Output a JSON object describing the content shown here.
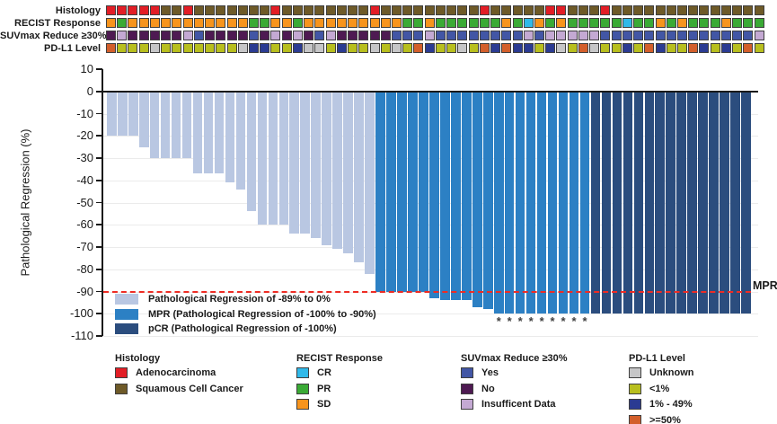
{
  "figure": {
    "type": "waterfall-plot-with-annotation-tracks",
    "background": "#ffffff"
  },
  "annotation_tracks": {
    "labels": [
      "Histology",
      "RECIST Response",
      "SUVmax Reduce ≥30%",
      "PD-L1 Level"
    ],
    "palette": {
      "R": "#e21e26",
      "B": "#6e5a28",
      "O": "#f7941d",
      "G": "#3aaa35",
      "C": "#30b9e9",
      "U": "#4256a5",
      "D": "#4e1a52",
      "L": "#c4a9d3",
      "G2": "#c6c6c7",
      "Y": "#b8bf1e",
      "U2": "#2b3b92",
      "O2": "#d35f2b"
    },
    "rows": [
      [
        "R",
        "R",
        "R",
        "R",
        "R",
        "B",
        "B",
        "R",
        "B",
        "B",
        "B",
        "B",
        "B",
        "B",
        "B",
        "R",
        "B",
        "B",
        "B",
        "B",
        "B",
        "B",
        "B",
        "B",
        "R",
        "B",
        "B",
        "B",
        "B",
        "B",
        "B",
        "B",
        "B",
        "B",
        "R",
        "B",
        "B",
        "B",
        "B",
        "B",
        "R",
        "R",
        "B",
        "B",
        "B",
        "R",
        "B",
        "B",
        "B",
        "B",
        "B",
        "B",
        "B",
        "B",
        "B",
        "B",
        "B",
        "B",
        "B",
        "B"
      ],
      [
        "O",
        "G",
        "O",
        "O",
        "O",
        "O",
        "O",
        "O",
        "O",
        "O",
        "O",
        "O",
        "O",
        "G",
        "G",
        "O",
        "O",
        "G",
        "O",
        "O",
        "O",
        "O",
        "O",
        "O",
        "O",
        "O",
        "O",
        "G",
        "G",
        "O",
        "G",
        "G",
        "G",
        "G",
        "G",
        "G",
        "O",
        "G",
        "C",
        "O",
        "G",
        "O",
        "G",
        "G",
        "G",
        "G",
        "G",
        "C",
        "G",
        "G",
        "O",
        "G",
        "O",
        "G",
        "G",
        "G",
        "O",
        "G",
        "G",
        "G"
      ],
      [
        "D",
        "L",
        "D",
        "D",
        "D",
        "D",
        "D",
        "L",
        "U",
        "D",
        "D",
        "D",
        "D",
        "U",
        "D",
        "L",
        "D",
        "L",
        "D",
        "U",
        "L",
        "D",
        "D",
        "D",
        "D",
        "D",
        "U",
        "U",
        "U",
        "L",
        "U",
        "U",
        "U",
        "U",
        "U",
        "U",
        "U",
        "U",
        "L",
        "U",
        "L",
        "L",
        "L",
        "L",
        "L",
        "U",
        "U",
        "U",
        "U",
        "U",
        "U",
        "U",
        "U",
        "U",
        "U",
        "U",
        "U",
        "U",
        "U",
        "L"
      ],
      [
        "O2",
        "Y",
        "Y",
        "Y",
        "G2",
        "Y",
        "Y",
        "Y",
        "Y",
        "Y",
        "Y",
        "Y",
        "G2",
        "U2",
        "U2",
        "Y",
        "Y",
        "U2",
        "G2",
        "G2",
        "Y",
        "U2",
        "Y",
        "Y",
        "G2",
        "Y",
        "G2",
        "Y",
        "O2",
        "U2",
        "Y",
        "Y",
        "G2",
        "Y",
        "O2",
        "U2",
        "O2",
        "U2",
        "U2",
        "Y",
        "U2",
        "G2",
        "Y",
        "O2",
        "G2",
        "Y",
        "Y",
        "U2",
        "Y",
        "O2",
        "U2",
        "Y",
        "Y",
        "O2",
        "U2",
        "Y",
        "U2",
        "Y",
        "O2",
        "Y"
      ]
    ]
  },
  "chart_data": {
    "type": "bar",
    "title": "",
    "xlabel": "",
    "ylabel": "Pathological Regression (%)",
    "ylim": [
      -110,
      10
    ],
    "yticks": [
      10,
      0,
      -10,
      -20,
      -30,
      -40,
      -50,
      -60,
      -70,
      -80,
      -90,
      -100,
      -110
    ],
    "grid": "horizontal-light",
    "reference_line": {
      "y": -90,
      "label": "MPR",
      "color": "#ee2c24",
      "style": "dashed"
    },
    "series": [
      {
        "name": "Pathological Regression of -89% to 0%",
        "color": "#b9c7e2",
        "count": 25
      },
      {
        "name": "MPR (Pathological Regression of -100% to -90%)",
        "color": "#2c80c4",
        "count": 20
      },
      {
        "name": "pCR (Pathological Regression of -100%)",
        "color": "#2b4d7e",
        "count": 15
      }
    ],
    "values": [
      -20,
      -20,
      -20,
      -25,
      -30,
      -30,
      -30,
      -30,
      -37,
      -37,
      -37,
      -41,
      -44,
      -54,
      -60,
      -60,
      -60,
      -64,
      -64,
      -66,
      -69,
      -71,
      -73,
      -77,
      -82,
      -90,
      -90,
      -90,
      -90,
      -90,
      -93,
      -94,
      -94,
      -94,
      -97,
      -98,
      -100,
      -100,
      -100,
      -100,
      -100,
      -100,
      -100,
      -100,
      -100,
      -100,
      -100,
      -100,
      -100,
      -100,
      -100,
      -100,
      -100,
      -100,
      -100,
      -100,
      -100,
      -100,
      -100,
      -100
    ],
    "groups": [
      0,
      0,
      0,
      0,
      0,
      0,
      0,
      0,
      0,
      0,
      0,
      0,
      0,
      0,
      0,
      0,
      0,
      0,
      0,
      0,
      0,
      0,
      0,
      0,
      0,
      1,
      1,
      1,
      1,
      1,
      1,
      1,
      1,
      1,
      1,
      1,
      1,
      1,
      1,
      1,
      1,
      1,
      1,
      1,
      1,
      2,
      2,
      2,
      2,
      2,
      2,
      2,
      2,
      2,
      2,
      2,
      2,
      2,
      2,
      2
    ],
    "asterisk_bars": [
      37,
      38,
      39,
      40,
      41,
      42,
      43,
      44,
      45
    ],
    "asterisk_symbol": "*"
  },
  "bottom_legends": [
    {
      "title": "Histology",
      "items": [
        {
          "label": "Adenocarcinoma",
          "color": "#e21e26"
        },
        {
          "label": "Squamous Cell Cancer",
          "color": "#6e5a28"
        }
      ]
    },
    {
      "title": "RECIST Response",
      "items": [
        {
          "label": "CR",
          "color": "#30b9e9"
        },
        {
          "label": "PR",
          "color": "#3aaa35"
        },
        {
          "label": "SD",
          "color": "#f7941d"
        }
      ]
    },
    {
      "title": "SUVmax Reduce ≥30%",
      "items": [
        {
          "label": "Yes",
          "color": "#4256a5"
        },
        {
          "label": "No",
          "color": "#4e1a52"
        },
        {
          "label": "Insufficent Data",
          "color": "#c4a9d3"
        }
      ]
    },
    {
      "title": "PD-L1 Level",
      "items": [
        {
          "label": "Unknown",
          "color": "#c6c6c7"
        },
        {
          "label": "<1%",
          "color": "#b8bf1e"
        },
        {
          "label": "1% - 49%",
          "color": "#2b3b92"
        },
        {
          "label": ">=50%",
          "color": "#d35f2b"
        }
      ]
    }
  ]
}
